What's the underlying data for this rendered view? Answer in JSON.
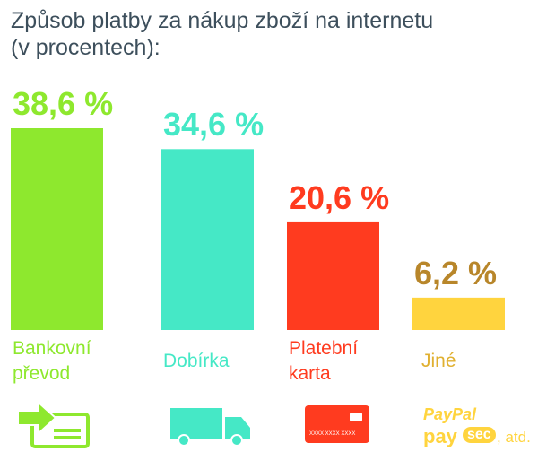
{
  "chart_data": {
    "type": "bar",
    "title": "Způsob platby za nákup zboží na internetu\n(v procentech):",
    "categories": [
      "Bankovní\npřevod",
      "Dobírka",
      "Platební\nkarta",
      "Jiné"
    ],
    "values": [
      38.6,
      34.6,
      20.6,
      6.2
    ],
    "value_labels": [
      "38,6 %",
      "34,6 %",
      "20,6 %",
      "6,2 %"
    ],
    "colors": [
      "#8ee82e",
      "#45e8c6",
      "#ff3b1f",
      "#ffd43e"
    ],
    "label_colors": [
      "#8ee82e",
      "#45e8c6",
      "#ff3b1f",
      "#b8862a"
    ],
    "annotations": [
      "XXXX XXXX XXXX",
      "PayPal",
      "pay",
      "sec",
      ", atd."
    ]
  }
}
